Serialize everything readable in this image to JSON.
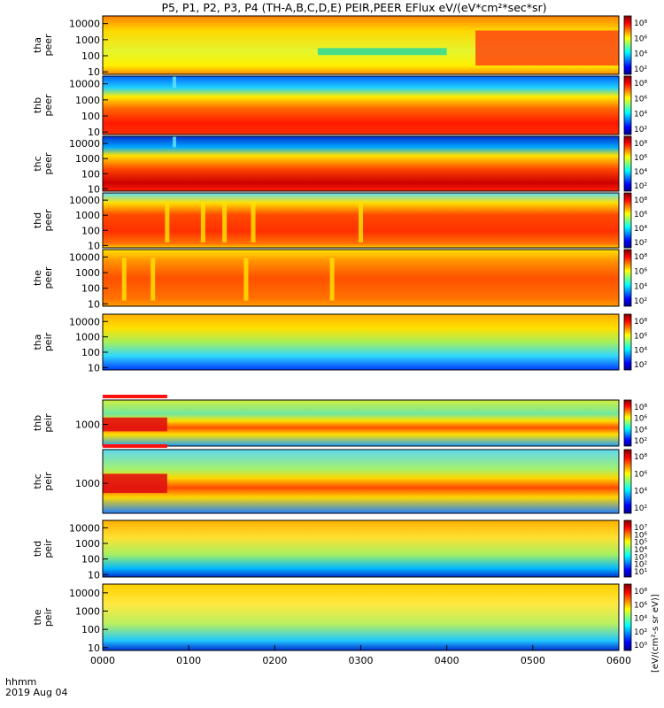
{
  "title": "P5, P1, P2, P3, P4 (TH-A,B,C,D,E) PEIR,PEER EFlux eV/(eV*cm²*sec*sr)",
  "time_axis": {
    "ticks": [
      "0000",
      "0100",
      "0200",
      "0300",
      "0400",
      "0500",
      "0600"
    ],
    "label_line1": "hhmm",
    "label_line2": "2019 Aug 04"
  },
  "colorbar_units": "[eV/(cm²-s sr eV)]",
  "colors": {
    "jet": [
      "#00008f",
      "#0000ff",
      "#0080ff",
      "#00ffff",
      "#80ff80",
      "#ffff00",
      "#ff8000",
      "#ff0000",
      "#800000"
    ],
    "frame": "#000000",
    "background": "#ffffff"
  },
  "chart_data": [
    {
      "type": "heatmap",
      "ylabel": "tha peer",
      "yticks": [
        "10000",
        "1000",
        "100",
        "10"
      ],
      "colorbar_ticks": [
        "10⁸",
        "10⁶",
        "10⁴",
        "10²"
      ],
      "xlim": [
        "0000",
        "0600"
      ],
      "ylim_eV": [
        7,
        30000
      ],
      "log_y": true,
      "features": {
        "low_energy_activity_onset": "0420",
        "band_200_500eV_interval": [
          "0230",
          "0400"
        ]
      }
    },
    {
      "type": "heatmap",
      "ylabel": "thb peer",
      "yticks": [
        "10000",
        "1000",
        "100",
        "10"
      ],
      "colorbar_ticks": [
        "10⁸",
        "10⁶",
        "10⁴",
        "10²"
      ],
      "xlim": [
        "0000",
        "0600"
      ],
      "ylim_eV": [
        7,
        30000
      ],
      "log_y": true,
      "features": {
        "data_gap_at": "0050"
      }
    },
    {
      "type": "heatmap",
      "ylabel": "thc peer",
      "yticks": [
        "10000",
        "1000",
        "100",
        "10"
      ],
      "colorbar_ticks": [
        "10⁸",
        "10⁶",
        "10⁴",
        "10²"
      ],
      "xlim": [
        "0000",
        "0600"
      ],
      "ylim_eV": [
        7,
        30000
      ],
      "log_y": true,
      "features": {
        "data_gap_at": "0050"
      }
    },
    {
      "type": "heatmap",
      "ylabel": "thd peer",
      "yticks": [
        "10000",
        "1000",
        "100",
        "10"
      ],
      "colorbar_ticks": [
        "10⁸",
        "10⁶",
        "10⁴",
        "10²"
      ],
      "xlim": [
        "0000",
        "0600"
      ],
      "ylim_eV": [
        7,
        30000
      ],
      "log_y": true,
      "features": {
        "dropouts_at": [
          "0045",
          "0110",
          "0125",
          "0145",
          "0300"
        ]
      }
    },
    {
      "type": "heatmap",
      "ylabel": "the peer",
      "yticks": [
        "10000",
        "1000",
        "100",
        "10"
      ],
      "colorbar_ticks": [
        "10⁸",
        "10⁶",
        "10⁴",
        "10²"
      ],
      "xlim": [
        "0000",
        "0600"
      ],
      "ylim_eV": [
        7,
        30000
      ],
      "log_y": true,
      "features": {
        "dropouts_at": [
          "0015",
          "0035",
          "0140",
          "0240"
        ]
      }
    },
    {
      "type": "heatmap",
      "ylabel": "tha peir",
      "yticks": [
        "10000",
        "1000",
        "100",
        "10"
      ],
      "colorbar_ticks": [
        "10⁸",
        "10⁶",
        "10⁴",
        "10²"
      ],
      "xlim": [
        "0000",
        "0600"
      ],
      "ylim_eV": [
        7,
        30000
      ],
      "log_y": true
    },
    {
      "type": "heatmap",
      "ylabel": "thb peir",
      "yticks": [
        "1000"
      ],
      "colorbar_ticks": [
        "10⁸",
        "10⁶",
        "10⁴",
        "10²"
      ],
      "xlim": [
        "0000",
        "0600"
      ],
      "log_y": true,
      "features": {
        "mode_change_at": "0045"
      }
    },
    {
      "type": "heatmap",
      "ylabel": "thc peir",
      "yticks": [
        "1000"
      ],
      "colorbar_ticks": [
        "10⁸",
        "10⁶",
        "10⁴",
        "10²"
      ],
      "xlim": [
        "0000",
        "0600"
      ],
      "log_y": true,
      "features": {
        "mode_change_at": "0045"
      }
    },
    {
      "type": "heatmap",
      "ylabel": "thd peir",
      "yticks": [
        "10000",
        "1000",
        "100",
        "10"
      ],
      "colorbar_ticks": [
        "10⁷",
        "10⁶",
        "10⁵",
        "10⁴",
        "10³",
        "10²",
        "10¹"
      ],
      "xlim": [
        "0000",
        "0600"
      ],
      "ylim_eV": [
        7,
        30000
      ],
      "log_y": true
    },
    {
      "type": "heatmap",
      "ylabel": "the peir",
      "yticks": [
        "10000",
        "1000",
        "100",
        "10"
      ],
      "colorbar_ticks": [
        "10⁸",
        "10⁶",
        "10⁴",
        "10²",
        "10⁰"
      ],
      "xlim": [
        "0000",
        "0600"
      ],
      "ylim_eV": [
        7,
        30000
      ],
      "log_y": true
    }
  ]
}
